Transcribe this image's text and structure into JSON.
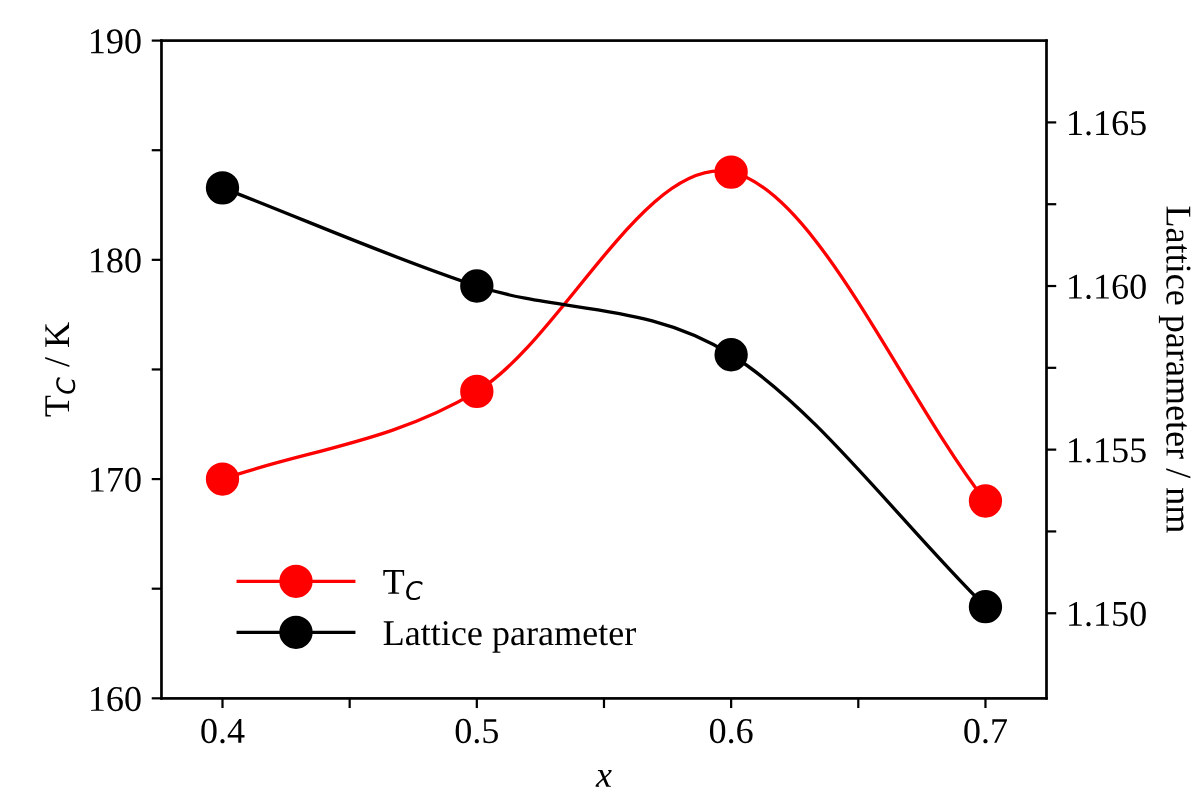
{
  "chart_data": {
    "type": "line",
    "xlabel": "x",
    "ylabel": "T$_{C}$ / K",
    "y2label": "Lattice parameter / nm",
    "x": [
      0.4,
      0.5,
      0.6,
      0.7
    ],
    "series": [
      {
        "name": "T$_{C}$",
        "color": "#ff0000",
        "values": [
          170,
          174,
          184,
          169
        ]
      },
      {
        "name": "Lattice parameter",
        "color": "#000000",
        "axis": "y2",
        "values": [
          1.163,
          1.16,
          1.1579,
          1.1502
        ]
      }
    ],
    "xlim": [
      0.376,
      0.724
    ],
    "xticks": [
      0.4,
      {
        "value": 0.45,
        "label": null
      },
      0.5,
      {
        "value": 0.55,
        "label": null
      },
      0.6,
      {
        "value": 0.65,
        "label": null
      },
      0.7
    ],
    "ylim": [
      160,
      190
    ],
    "yticks": [
      160,
      {
        "value": 165,
        "label": null
      },
      170,
      {
        "value": 175,
        "label": null
      },
      180,
      {
        "value": 185,
        "label": null
      },
      190
    ],
    "y2lim": [
      1.1474,
      1.1675
    ],
    "y2ticks": [
      {
        "value": 1.15,
        "label": "1.150"
      },
      {
        "value": 1.1525,
        "label": null
      },
      {
        "value": 1.155,
        "label": "1.155"
      },
      {
        "value": 1.1575,
        "label": null
      },
      {
        "value": 1.16,
        "label": "1.160"
      },
      {
        "value": 1.1625,
        "label": null
      },
      {
        "value": 1.165,
        "label": "1.165"
      }
    ],
    "marker": "circle",
    "line_style": "solid",
    "grid": false,
    "legend": "bottom left"
  }
}
